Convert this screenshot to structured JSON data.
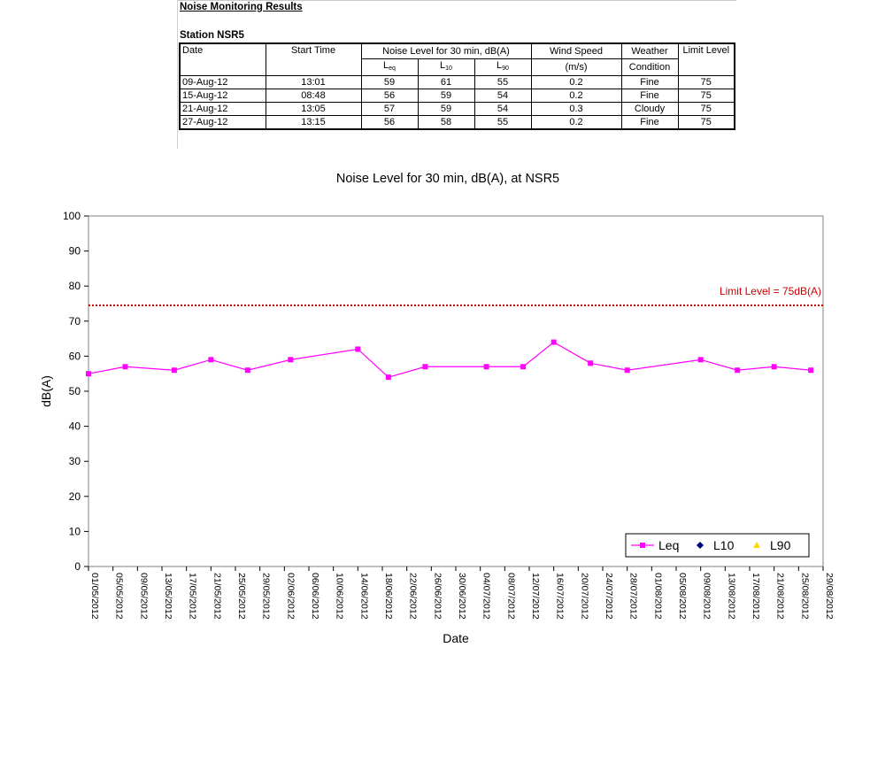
{
  "report": {
    "title": "Noise Monitoring Results",
    "station": "Station NSR5",
    "headers": {
      "date": "Date",
      "start_time": "Start Time",
      "noise_level": "Noise Level for 30 min, dB(A)",
      "leq_main": "L",
      "leq_sub": "eq",
      "l10_main": "L",
      "l10_sub": "10",
      "l90_main": "L",
      "l90_sub": "90",
      "wind_speed": "Wind Speed",
      "wind_unit": "(m/s)",
      "weather_1": "Weather",
      "weather_2": "Condition",
      "limit_level": "Limit Level"
    },
    "rows": [
      {
        "date": "09-Aug-12",
        "time": "13:01",
        "leq": "59",
        "l10": "61",
        "l90": "55",
        "wind": "0.2",
        "weather": "Fine",
        "limit": "75"
      },
      {
        "date": "15-Aug-12",
        "time": "08:48",
        "leq": "56",
        "l10": "59",
        "l90": "54",
        "wind": "0.2",
        "weather": "Fine",
        "limit": "75"
      },
      {
        "date": "21-Aug-12",
        "time": "13:05",
        "leq": "57",
        "l10": "59",
        "l90": "54",
        "wind": "0.3",
        "weather": "Cloudy",
        "limit": "75"
      },
      {
        "date": "27-Aug-12",
        "time": "13:15",
        "leq": "56",
        "l10": "58",
        "l90": "55",
        "wind": "0.2",
        "weather": "Fine",
        "limit": "75"
      }
    ]
  },
  "chart_data": {
    "type": "line",
    "title": "Noise Level for 30 min, dB(A), at NSR5",
    "xlabel": "Date",
    "ylabel": "dB(A)",
    "ylim": [
      0,
      100
    ],
    "yticks": [
      0,
      10,
      20,
      30,
      40,
      50,
      60,
      70,
      80,
      90,
      100
    ],
    "xlim": [
      "01/05/2012",
      "29/08/2012"
    ],
    "xticks": [
      "01/05/2012",
      "05/05/2012",
      "09/05/2012",
      "13/05/2012",
      "17/05/2012",
      "21/05/2012",
      "25/05/2012",
      "29/05/2012",
      "02/06/2012",
      "06/06/2012",
      "10/06/2012",
      "14/06/2012",
      "18/06/2012",
      "22/06/2012",
      "26/06/2012",
      "30/06/2012",
      "04/07/2012",
      "08/07/2012",
      "12/07/2012",
      "16/07/2012",
      "20/07/2012",
      "24/07/2012",
      "28/07/2012",
      "01/08/2012",
      "05/08/2012",
      "09/08/2012",
      "13/08/2012",
      "17/08/2012",
      "21/08/2012",
      "25/08/2012",
      "29/08/2012"
    ],
    "grid": false,
    "legend": "bottom-right",
    "limit_line": {
      "value": 74.5,
      "label": "Limit Level = 75dB(A)",
      "color": "#cc0000"
    },
    "series": [
      {
        "name": "Leq",
        "color": "#ff00ff",
        "marker": "square",
        "x": [
          "01/05/2012",
          "07/05/2012",
          "15/05/2012",
          "21/05/2012",
          "27/05/2012",
          "03/06/2012",
          "14/06/2012",
          "19/06/2012",
          "25/06/2012",
          "05/07/2012",
          "11/07/2012",
          "16/07/2012",
          "22/07/2012",
          "28/07/2012",
          "09/08/2012",
          "15/08/2012",
          "21/08/2012",
          "27/08/2012"
        ],
        "y": [
          55,
          57,
          56,
          59,
          56,
          59,
          62,
          54,
          57,
          57,
          57,
          64,
          58,
          56,
          59,
          56,
          57,
          56
        ]
      },
      {
        "name": "L10",
        "color": "#000080",
        "marker": "diamond",
        "x": [],
        "y": []
      },
      {
        "name": "L90",
        "color": "#ffd700",
        "marker": "triangle",
        "x": [],
        "y": []
      }
    ]
  }
}
